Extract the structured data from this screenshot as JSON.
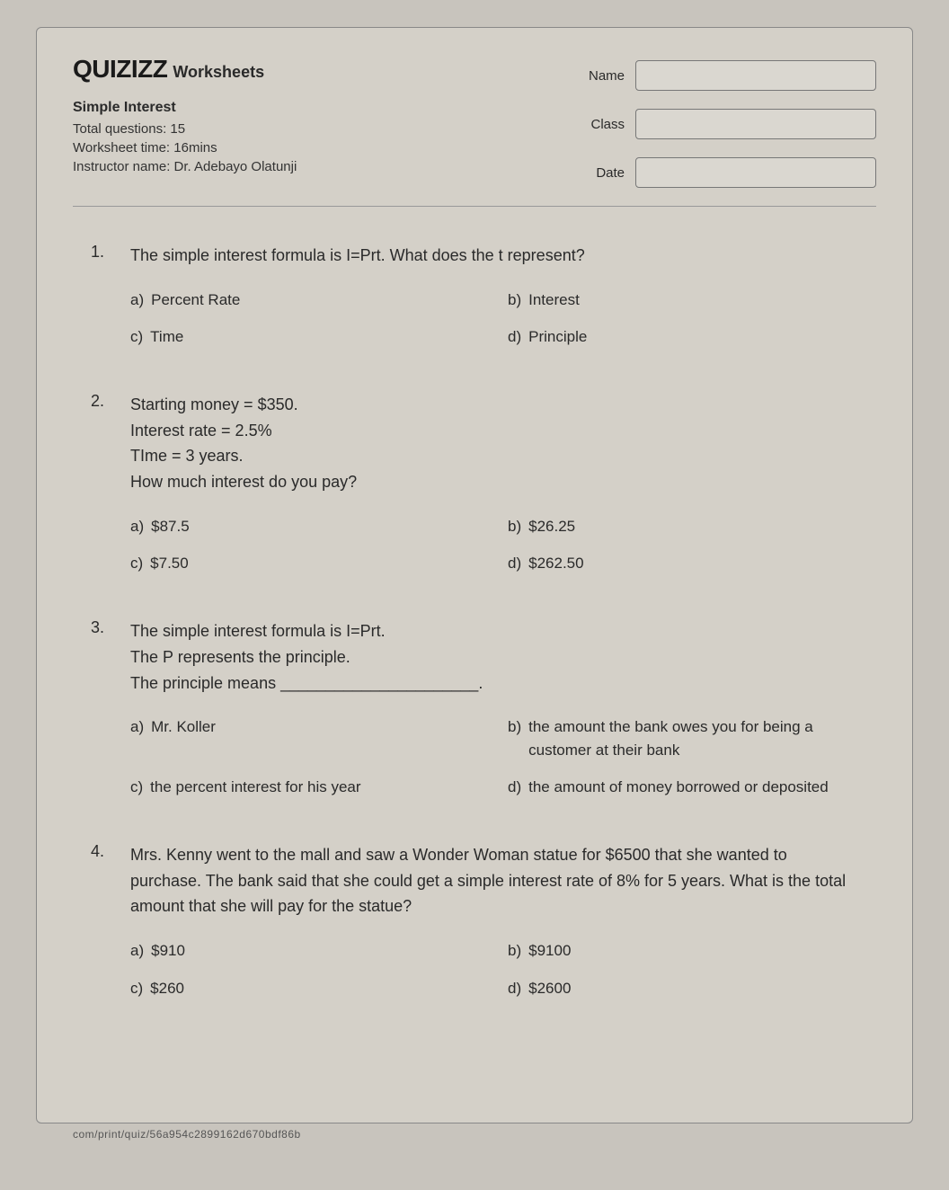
{
  "brand": {
    "logo": "QUIZIZZ",
    "sub": "Worksheets"
  },
  "meta": {
    "topic": "Simple Interest",
    "total_questions_label": "Total questions: 15",
    "time_label": "Worksheet time: 16mins",
    "instructor_label": "Instructor name: Dr. Adebayo Olatunji"
  },
  "fields": {
    "name_label": "Name",
    "class_label": "Class",
    "date_label": "Date"
  },
  "questions": [
    {
      "num": "1.",
      "lines": [
        "The simple interest formula is I=Prt.  What does the t represent?"
      ],
      "options": {
        "a": "Percent Rate",
        "b": "Interest",
        "c": "Time",
        "d": "Principle"
      }
    },
    {
      "num": "2.",
      "lines": [
        "Starting money = $350.",
        "Interest rate = 2.5%",
        "TIme = 3 years.",
        "How much interest do you pay?"
      ],
      "options": {
        "a": "$87.5",
        "b": "$26.25",
        "c": "$7.50",
        "d": "$262.50"
      }
    },
    {
      "num": "3.",
      "lines": [
        "The simple interest formula is I=Prt.",
        "The P represents the principle.",
        "The principle means ______________________."
      ],
      "options": {
        "a": "Mr. Koller",
        "b": "the amount the bank owes you for being a customer at their bank",
        "c": "the percent interest for his year",
        "d": "the amount of money borrowed or deposited"
      }
    },
    {
      "num": "4.",
      "lines": [
        "Mrs. Kenny went to the mall and saw a Wonder Woman statue for $6500 that she wanted to purchase. The bank said that she could get a simple interest rate of 8% for 5 years. What is the total amount that she will pay for the statue?"
      ],
      "options": {
        "a": "$910",
        "b": "$9100",
        "c": "$260",
        "d": "$2600"
      }
    }
  ],
  "footer": "com/print/quiz/56a954c2899162d670bdf86b",
  "colors": {
    "page_bg": "#c8c4bd",
    "sheet_bg": "#d4d0c8",
    "text": "#2a2a2a",
    "border": "#888"
  }
}
